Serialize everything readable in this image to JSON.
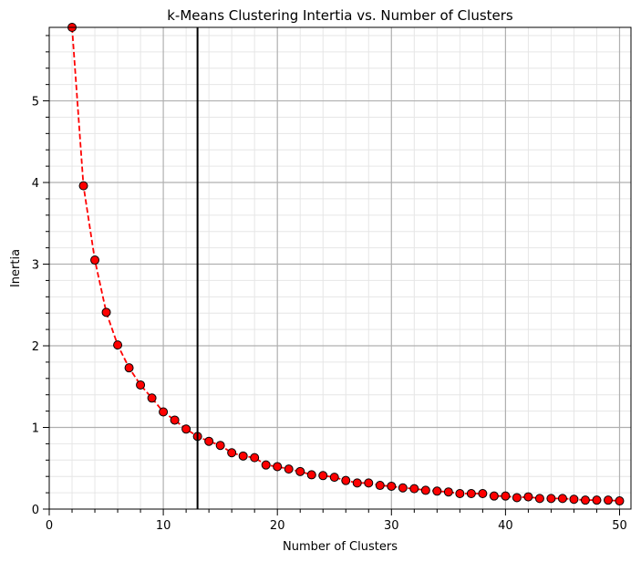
{
  "chart_data": {
    "type": "line",
    "title": "k-Means Clustering Intertia vs. Number of Clusters",
    "xlabel": "Number of Clusters",
    "ylabel": "Inertia",
    "xlim": [
      0,
      51
    ],
    "ylim": [
      0,
      5.9
    ],
    "x_ticks": [
      0,
      10,
      20,
      30,
      40,
      50
    ],
    "y_ticks": [
      0,
      1,
      2,
      3,
      4,
      5
    ],
    "x_tick_labels": [
      "0",
      "10",
      "20",
      "30",
      "40",
      "50"
    ],
    "y_tick_labels": [
      "0",
      "1",
      "2",
      "3",
      "4",
      "5"
    ],
    "grid": true,
    "minor_grid": true,
    "vertical_marker_x": 13,
    "series": [
      {
        "line_color": "#ff0000",
        "line_style": "dashed",
        "marker_face": "#ff0000",
        "marker_edge": "#000000",
        "x": [
          2,
          3,
          4,
          5,
          6,
          7,
          8,
          9,
          10,
          11,
          12,
          13,
          14,
          15,
          16,
          17,
          18,
          19,
          20,
          21,
          22,
          23,
          24,
          25,
          26,
          27,
          28,
          29,
          30,
          31,
          32,
          33,
          34,
          35,
          36,
          37,
          38,
          39,
          40,
          41,
          42,
          43,
          44,
          45,
          46,
          47,
          48,
          49,
          50
        ],
        "y": [
          5.9,
          3.96,
          3.05,
          2.41,
          2.01,
          1.73,
          1.52,
          1.36,
          1.19,
          1.09,
          0.98,
          0.89,
          0.83,
          0.78,
          0.69,
          0.65,
          0.63,
          0.54,
          0.52,
          0.49,
          0.46,
          0.42,
          0.41,
          0.39,
          0.35,
          0.32,
          0.32,
          0.29,
          0.28,
          0.26,
          0.25,
          0.23,
          0.22,
          0.21,
          0.19,
          0.19,
          0.19,
          0.16,
          0.16,
          0.14,
          0.15,
          0.13,
          0.13,
          0.13,
          0.12,
          0.11,
          0.11,
          0.11,
          0.1
        ]
      }
    ]
  }
}
